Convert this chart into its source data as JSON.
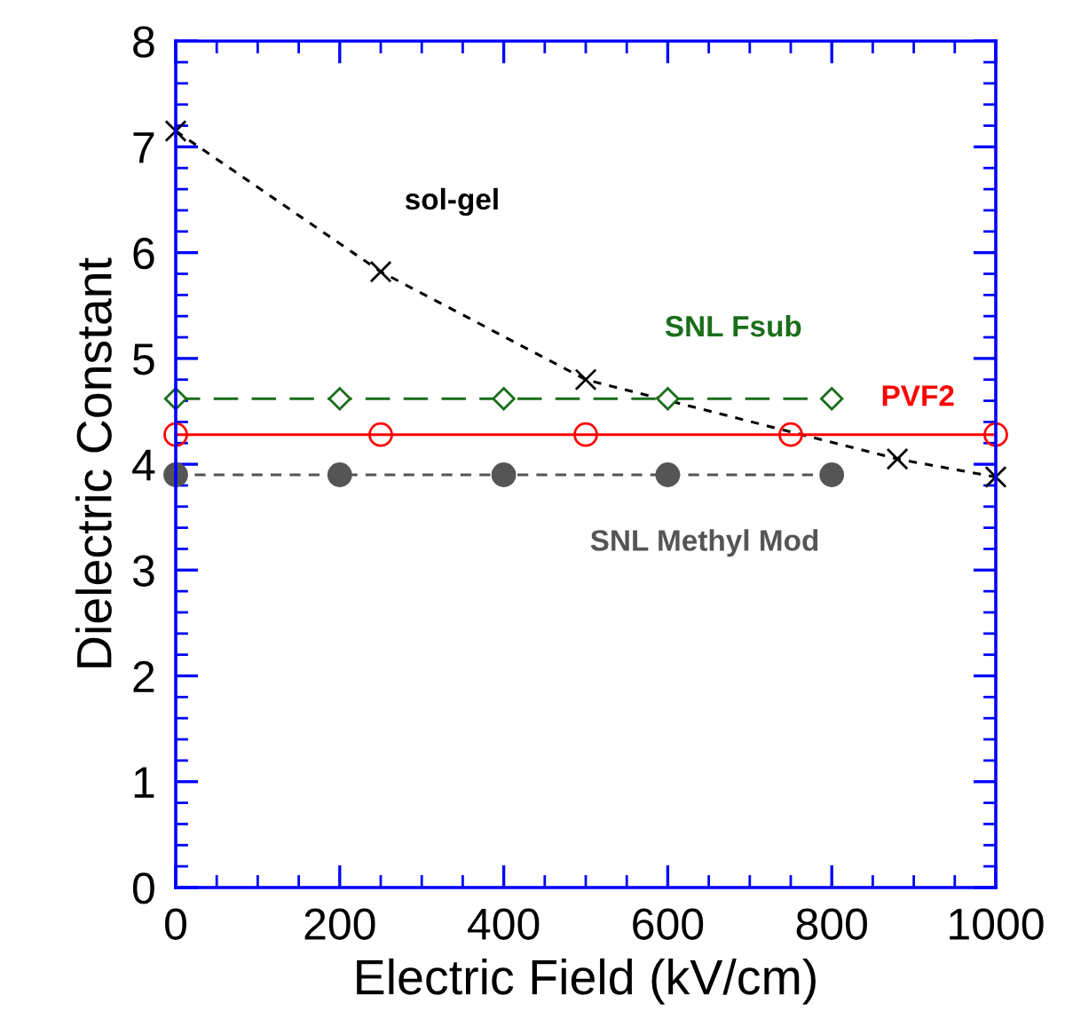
{
  "chart_data": {
    "type": "line",
    "xlabel": "Electric Field (kV/cm)",
    "ylabel": "Dielectric Constant",
    "xlim": [
      0,
      1000
    ],
    "xticks": [
      0,
      200,
      400,
      600,
      800,
      1000
    ],
    "ylim": [
      0,
      8
    ],
    "yticks": [
      0,
      1,
      2,
      3,
      4,
      5,
      6,
      7,
      8
    ],
    "grid": false,
    "legend": false,
    "series": [
      {
        "name": "sol-gel",
        "color": "#000000",
        "marker": "cross",
        "line_style": "dashed",
        "x": [
          0,
          250,
          500,
          880,
          1000
        ],
        "values": [
          7.15,
          5.82,
          4.8,
          4.05,
          3.88
        ]
      },
      {
        "name": "SNL Fsub",
        "color": "#1a6e1a",
        "marker": "diamond",
        "line_style": "dashed",
        "x": [
          0,
          200,
          400,
          600,
          800
        ],
        "values": [
          4.62,
          4.62,
          4.62,
          4.62,
          4.62
        ]
      },
      {
        "name": "PVF2",
        "color": "#ff0000",
        "marker": "circle",
        "line_style": "solid",
        "x": [
          0,
          250,
          500,
          750,
          1000
        ],
        "values": [
          4.28,
          4.28,
          4.28,
          4.28,
          4.28
        ]
      },
      {
        "name": "SNL Methyl Mod",
        "color": "#555555",
        "marker": "circle",
        "line_style": "dashed",
        "x": [
          0,
          200,
          400,
          600,
          800
        ],
        "values": [
          3.9,
          3.9,
          3.9,
          3.9,
          3.9
        ]
      }
    ]
  }
}
